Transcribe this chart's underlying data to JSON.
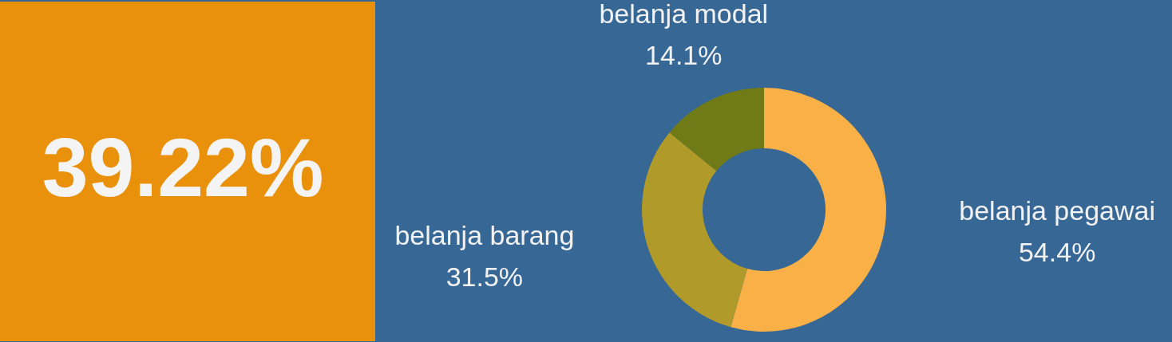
{
  "chart_data": [
    {
      "type": "other",
      "title": "39.22%"
    },
    {
      "type": "donut",
      "categories": [
        "belanja pegawai",
        "belanja barang",
        "belanja modal"
      ],
      "values": [
        54.4,
        31.5,
        14.1
      ],
      "value_labels": [
        "54.4%",
        "31.5%",
        "14.1%"
      ],
      "colors": [
        "#f9b147",
        "#b09a29",
        "#707b18"
      ]
    }
  ]
}
